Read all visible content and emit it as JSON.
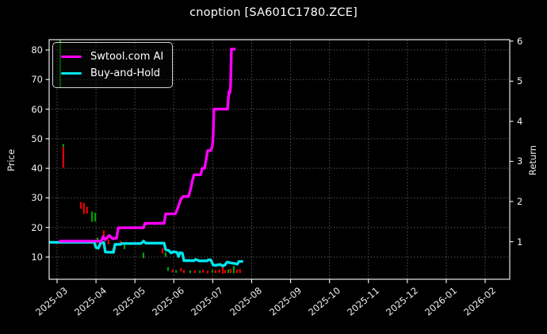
{
  "title": "cnoption [SA601C1780.ZCE]",
  "colors": {
    "background": "#000000",
    "frame": "#e8e8e8",
    "grid": "#5f5f5f",
    "text": "#f0f0f0",
    "ai_line": "#ff00ff",
    "buyhold_line": "#00e5ee",
    "candle_up": "#00a000",
    "candle_down": "#ea0000"
  },
  "chart_data": {
    "type": "line",
    "title": "cnoption [SA601C1780.ZCE]",
    "x_axis": {
      "unit": "months since 2025-03-01",
      "tick_labels": [
        "2025-03",
        "2025-04",
        "2025-05",
        "2025-06",
        "2025-07",
        "2025-08",
        "2025-09",
        "2025-10",
        "2025-11",
        "2025-12",
        "2026-01",
        "2026-02"
      ],
      "tick_positions": [
        0,
        1,
        2,
        3,
        4,
        5,
        6,
        7,
        8,
        9,
        10,
        11
      ],
      "range": [
        -0.2,
        11.63
      ],
      "label_rotation_deg": -40
    },
    "price_axis": {
      "label": "Price",
      "side": "left",
      "ticks": [
        10,
        20,
        30,
        40,
        50,
        60,
        70,
        80
      ]
    },
    "return_axis": {
      "label": "Return",
      "side": "right",
      "ticks": [
        1,
        2,
        3,
        4,
        5,
        6
      ]
    },
    "grid": {
      "horizontal_at_price_ticks": true,
      "vertical_at_month_ticks": true,
      "style": "dotted"
    },
    "legend": {
      "position": "upper-left",
      "entries": [
        "Swtool.com AI",
        "Buy-and-Hold"
      ]
    },
    "series": [
      {
        "name": "Swtool.com AI",
        "color": "#ff00ff",
        "points": [
          [
            0.08,
            15.4
          ],
          [
            1.14,
            15.4
          ],
          [
            1.18,
            16.9
          ],
          [
            1.24,
            15.9
          ],
          [
            1.34,
            17.3
          ],
          [
            1.43,
            16.2
          ],
          [
            1.53,
            16.4
          ],
          [
            1.57,
            19.9
          ],
          [
            2.22,
            19.9
          ],
          [
            2.26,
            21.4
          ],
          [
            2.75,
            21.4
          ],
          [
            2.79,
            24.6
          ],
          [
            3.04,
            24.6
          ],
          [
            3.1,
            26.5
          ],
          [
            3.18,
            29.5
          ],
          [
            3.24,
            30.5
          ],
          [
            3.38,
            30.5
          ],
          [
            3.44,
            33.5
          ],
          [
            3.48,
            36.0
          ],
          [
            3.52,
            37.8
          ],
          [
            3.69,
            37.8
          ],
          [
            3.73,
            40.0
          ],
          [
            3.79,
            40.0
          ],
          [
            3.83,
            43.0
          ],
          [
            3.87,
            46.0
          ],
          [
            3.95,
            46.0
          ],
          [
            3.99,
            47.5
          ],
          [
            4.01,
            51.0
          ],
          [
            4.03,
            60.0
          ],
          [
            4.38,
            60.0
          ],
          [
            4.4,
            63.5
          ],
          [
            4.42,
            66.0
          ],
          [
            4.44,
            65.5
          ],
          [
            4.46,
            68.0
          ],
          [
            4.48,
            80.3
          ],
          [
            4.56,
            80.3
          ]
        ]
      },
      {
        "name": "Buy-and-Hold",
        "color": "#00e5ee",
        "points": [
          [
            -0.2,
            15.0
          ],
          [
            0.96,
            15.0
          ],
          [
            1.0,
            13.2
          ],
          [
            1.06,
            13.0
          ],
          [
            1.12,
            14.8
          ],
          [
            1.2,
            14.9
          ],
          [
            1.24,
            11.7
          ],
          [
            1.45,
            11.6
          ],
          [
            1.49,
            14.3
          ],
          [
            1.63,
            14.3
          ],
          [
            1.67,
            14.6
          ],
          [
            2.16,
            14.6
          ],
          [
            2.22,
            15.4
          ],
          [
            2.28,
            14.7
          ],
          [
            2.75,
            14.7
          ],
          [
            2.79,
            12.5
          ],
          [
            2.87,
            12.2
          ],
          [
            2.93,
            11.4
          ],
          [
            2.99,
            11.8
          ],
          [
            3.08,
            11.6
          ],
          [
            3.12,
            10.2
          ],
          [
            3.16,
            11.5
          ],
          [
            3.22,
            11.3
          ],
          [
            3.26,
            8.8
          ],
          [
            3.52,
            8.8
          ],
          [
            3.56,
            9.2
          ],
          [
            3.65,
            8.7
          ],
          [
            3.85,
            8.7
          ],
          [
            3.89,
            9.1
          ],
          [
            3.95,
            9.0
          ],
          [
            4.01,
            7.3
          ],
          [
            4.07,
            7.2
          ],
          [
            4.19,
            7.5
          ],
          [
            4.25,
            7.0
          ],
          [
            4.31,
            7.3
          ],
          [
            4.37,
            8.3
          ],
          [
            4.47,
            8.0
          ],
          [
            4.57,
            7.8
          ],
          [
            4.63,
            7.6
          ],
          [
            4.67,
            8.5
          ],
          [
            4.75,
            8.5
          ]
        ]
      }
    ],
    "candlesticks": {
      "up_color": "#00a000",
      "down_color": "#ea0000",
      "up": [
        [
          0.08,
          83.5,
          67.4
        ],
        [
          0.16,
          48.2,
          47.2
        ],
        [
          0.9,
          25.4,
          21.9
        ],
        [
          0.98,
          25.0,
          22.0
        ],
        [
          1.04,
          16.6,
          14.7
        ],
        [
          1.73,
          14.1,
          12.7
        ],
        [
          2.22,
          11.5,
          9.6
        ],
        [
          2.79,
          11.6,
          10.1
        ],
        [
          2.85,
          6.6,
          5.3
        ],
        [
          3.06,
          5.6,
          4.7
        ],
        [
          3.42,
          5.5,
          4.6
        ],
        [
          3.67,
          5.4,
          4.6
        ],
        [
          3.99,
          5.6,
          4.7
        ],
        [
          4.4,
          5.8,
          4.6
        ],
        [
          4.54,
          7.0,
          4.5
        ]
      ],
      "down": [
        [
          0.16,
          47.2,
          40.2
        ],
        [
          0.61,
          28.6,
          26.3
        ],
        [
          0.69,
          28.3,
          24.6
        ],
        [
          0.77,
          27.0,
          24.7
        ],
        [
          1.2,
          19.0,
          17.2
        ],
        [
          1.32,
          16.0,
          14.3
        ],
        [
          1.43,
          12.9,
          11.7
        ],
        [
          1.63,
          15.5,
          14.2
        ],
        [
          2.71,
          13.0,
          11.2
        ],
        [
          2.97,
          5.8,
          4.8
        ],
        [
          3.18,
          6.3,
          5.2
        ],
        [
          3.26,
          5.6,
          4.6
        ],
        [
          3.54,
          5.5,
          4.6
        ],
        [
          3.75,
          5.7,
          4.7
        ],
        [
          3.87,
          5.4,
          4.5
        ],
        [
          4.07,
          5.6,
          4.6
        ],
        [
          4.17,
          5.8,
          4.7
        ],
        [
          4.26,
          6.8,
          4.4
        ],
        [
          4.32,
          5.6,
          4.6
        ],
        [
          4.46,
          6.0,
          4.6
        ],
        [
          4.62,
          5.7,
          4.6
        ],
        [
          4.7,
          5.9,
          4.6
        ]
      ]
    }
  }
}
